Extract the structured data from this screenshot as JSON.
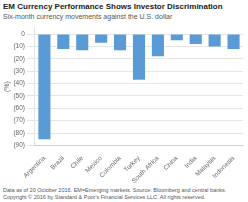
{
  "chart_data": {
    "type": "bar",
    "title": "EM Currency Performance Shows Investor Discrimination",
    "subtitle": "Six-month currency movements against the U.S. dollar",
    "ylabel": "(%)",
    "categories": [
      "Argentina",
      "Brazil",
      "Chile",
      "Mexico",
      "Colombia",
      "Turkey",
      "South Africa",
      "China",
      "India",
      "Malaysia",
      "Indonesia"
    ],
    "values": [
      -85,
      -12,
      -13,
      -7,
      -13,
      -37,
      -18,
      -5,
      -8,
      -10,
      -12
    ],
    "color": "#5b9bd5",
    "ylim": [
      -90,
      5
    ],
    "yticks": [
      0,
      {
        "value": -10,
        "label": "(10)"
      },
      {
        "value": -20,
        "label": "(20)"
      },
      {
        "value": -30,
        "label": "(30)"
      },
      {
        "value": -40,
        "label": "(40)"
      },
      {
        "value": -50,
        "label": "(50)"
      },
      {
        "value": -60,
        "label": "(60)"
      },
      {
        "value": -70,
        "label": "(70)"
      },
      {
        "value": -80,
        "label": "(80)"
      },
      {
        "value": -90,
        "label": "(90)"
      }
    ],
    "grid": true,
    "annotations": [
      "Data as of 20 October 2016. EM=Emerging markets.  Source: Bloomberg and central banks.",
      "Copyright © 2016 by Standard & Poor's Financial Services LLC.  All rights reserved."
    ]
  }
}
